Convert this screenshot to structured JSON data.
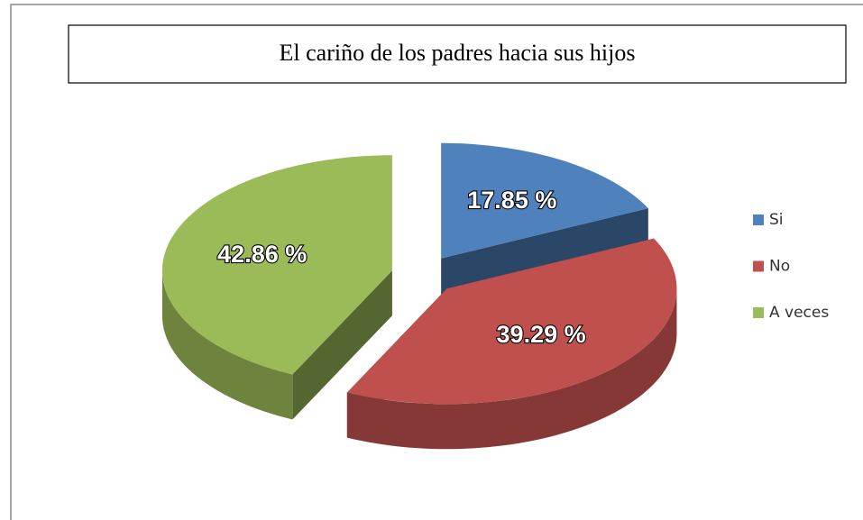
{
  "chart_data": {
    "type": "pie3d",
    "title": "El cariño de los padres hacia sus hijos",
    "categories": [
      "Si",
      "No",
      "A veces"
    ],
    "values": [
      17.85,
      39.29,
      42.86
    ],
    "value_labels": [
      "17.85 %",
      "39.29 %",
      "42.86 %"
    ],
    "colors": [
      "#4f81bd",
      "#c0504d",
      "#9bbb59"
    ],
    "legend": "right"
  }
}
